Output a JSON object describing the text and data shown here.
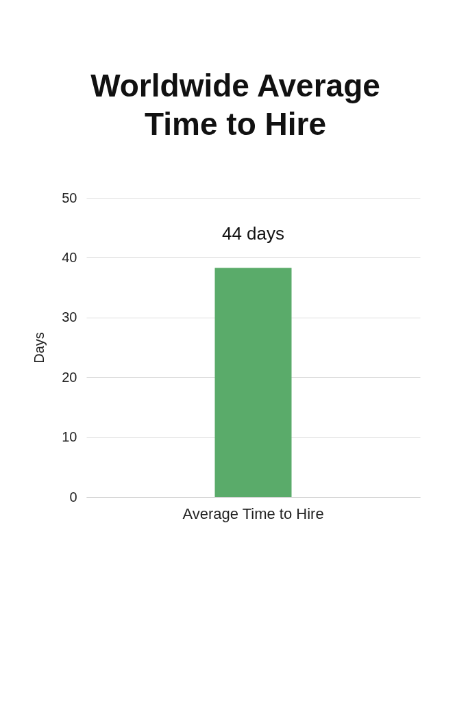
{
  "chart_data": {
    "type": "bar",
    "title": "Worldwide Average Time to Hire",
    "ylabel": "Days",
    "categories": [
      "Average Time to Hire"
    ],
    "values": [
      38.3
    ],
    "color": "#5aab6a",
    "ylim": [
      0,
      50
    ],
    "yticks": [
      0,
      10,
      20,
      30,
      40,
      50
    ],
    "grid": "y",
    "annotations": [
      {
        "text": "44 days",
        "x": "Average Time to Hire",
        "y": 38.3
      }
    ]
  }
}
